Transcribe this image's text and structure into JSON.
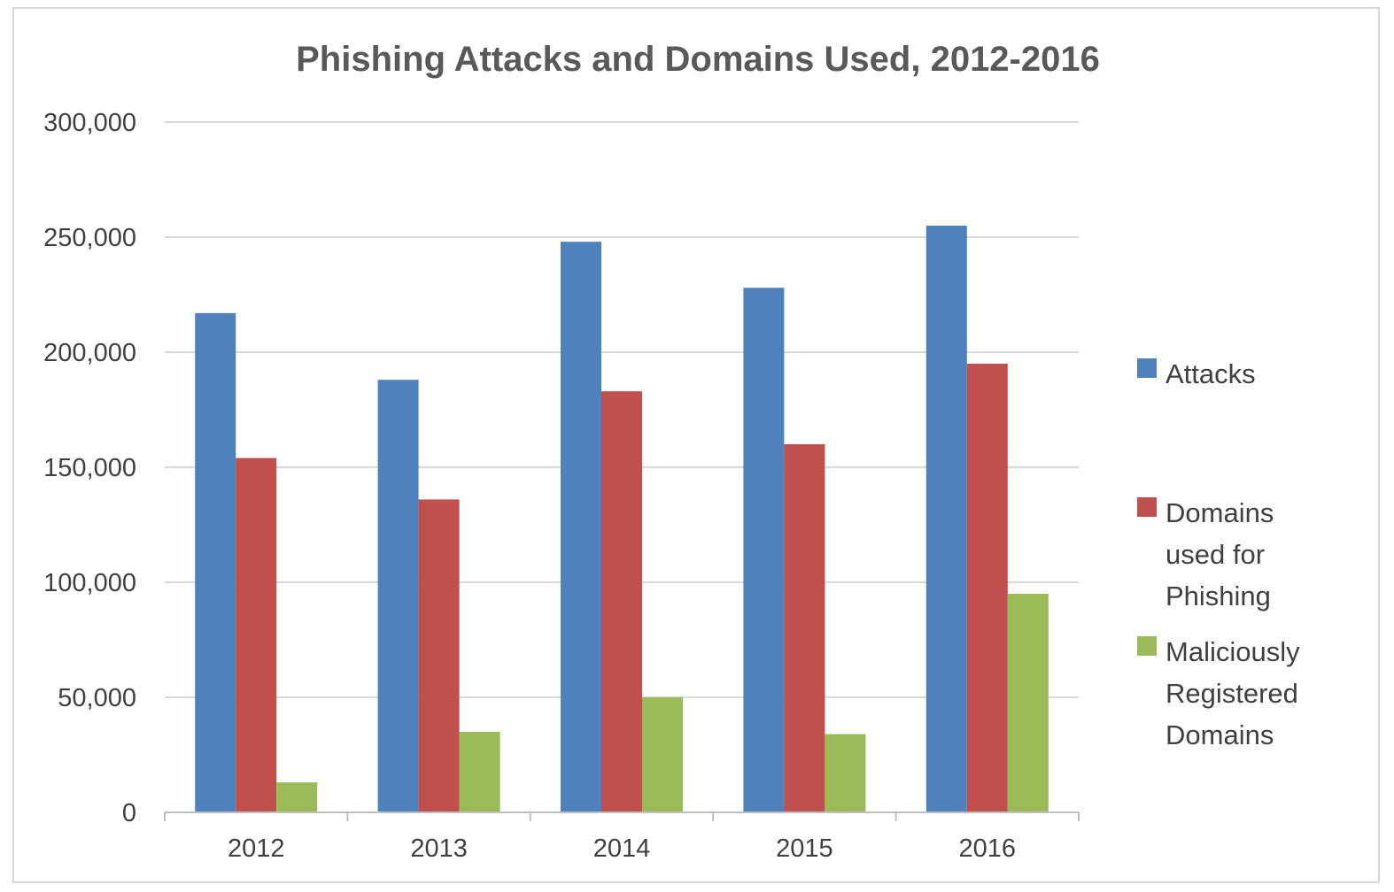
{
  "chart_data": {
    "type": "bar",
    "title": "Phishing Attacks and Domains Used, 2012-2016",
    "xlabel": "",
    "ylabel": "",
    "categories": [
      "2012",
      "2013",
      "2014",
      "2015",
      "2016"
    ],
    "ylim": [
      0,
      300000
    ],
    "yticks": [
      0,
      50000,
      100000,
      150000,
      200000,
      250000,
      300000
    ],
    "ytick_labels": [
      "0",
      "50,000",
      "100,000",
      "150,000",
      "200,000",
      "250,000",
      "300,000"
    ],
    "grid": true,
    "legend_position": "right",
    "series": [
      {
        "name": "Attacks",
        "legend_lines": [
          "Attacks"
        ],
        "color": "#4f81bd",
        "values": [
          217000,
          188000,
          248000,
          228000,
          255000
        ]
      },
      {
        "name": "Domains used for Phishing",
        "legend_lines": [
          "Domains",
          "used for",
          "Phishing"
        ],
        "color": "#c0504d",
        "values": [
          154000,
          136000,
          183000,
          160000,
          195000
        ]
      },
      {
        "name": "Maliciously Registered Domains",
        "legend_lines": [
          "Maliciously",
          "Registered",
          "Domains"
        ],
        "color": "#9bbb59",
        "values": [
          13000,
          35000,
          50000,
          34000,
          95000
        ]
      }
    ]
  }
}
